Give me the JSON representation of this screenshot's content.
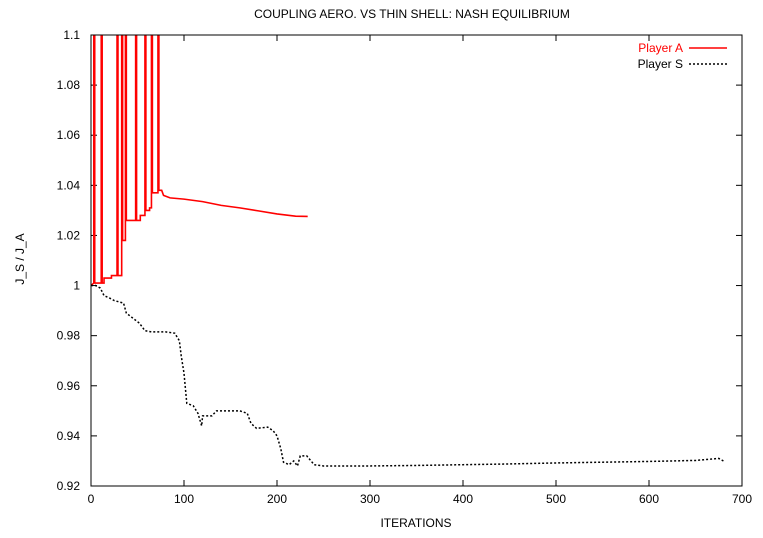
{
  "chart_data": {
    "type": "line",
    "title": "COUPLING AERO. VS THIN SHELL: NASH EQUILIBRIUM",
    "xlabel": "ITERATIONS",
    "ylabel": "J_S / J_A",
    "xlim": [
      0,
      700
    ],
    "ylim": [
      0.92,
      1.1
    ],
    "x_ticks": [
      "0",
      "100",
      "200",
      "300",
      "400",
      "500",
      "600",
      "700"
    ],
    "y_ticks": [
      "0.92",
      "0.94",
      "0.96",
      "0.98",
      "1",
      "1.02",
      "1.04",
      "1.06",
      "1.08",
      "1.1"
    ],
    "legend_position": "top-right",
    "grid": false,
    "series": [
      {
        "name": "Player A",
        "color": "#ff0000",
        "style": "solid",
        "points": [
          [
            0,
            1.0
          ],
          [
            3,
            1.001
          ],
          [
            3,
            1.1
          ],
          [
            4,
            1.1
          ],
          [
            4,
            1.001
          ],
          [
            11,
            1.001
          ],
          [
            11,
            1.1
          ],
          [
            12,
            1.1
          ],
          [
            12,
            1.001
          ],
          [
            14,
            1.001
          ],
          [
            14,
            1.003
          ],
          [
            22,
            1.003
          ],
          [
            22,
            1.004
          ],
          [
            28,
            1.004
          ],
          [
            28,
            1.1
          ],
          [
            29,
            1.1
          ],
          [
            29,
            1.004
          ],
          [
            33,
            1.004
          ],
          [
            33,
            1.1
          ],
          [
            34,
            1.1
          ],
          [
            34,
            1.018
          ],
          [
            37,
            1.018
          ],
          [
            37,
            1.1
          ],
          [
            38,
            1.1
          ],
          [
            38,
            1.026
          ],
          [
            48,
            1.026
          ],
          [
            48,
            1.1
          ],
          [
            49,
            1.1
          ],
          [
            49,
            1.026
          ],
          [
            53,
            1.026
          ],
          [
            53,
            1.028
          ],
          [
            58,
            1.028
          ],
          [
            58,
            1.1
          ],
          [
            59,
            1.1
          ],
          [
            59,
            1.03
          ],
          [
            63,
            1.03
          ],
          [
            63,
            1.031
          ],
          [
            65,
            1.031
          ],
          [
            65,
            1.1
          ],
          [
            66,
            1.1
          ],
          [
            66,
            1.037
          ],
          [
            72,
            1.037
          ],
          [
            72,
            1.1
          ],
          [
            73,
            1.1
          ],
          [
            73,
            1.038
          ],
          [
            76,
            1.038
          ],
          [
            78,
            1.036
          ],
          [
            85,
            1.035
          ],
          [
            100,
            1.0345
          ],
          [
            120,
            1.0335
          ],
          [
            140,
            1.032
          ],
          [
            160,
            1.031
          ],
          [
            180,
            1.0298
          ],
          [
            200,
            1.0286
          ],
          [
            220,
            1.0277
          ],
          [
            233,
            1.0276
          ]
        ]
      },
      {
        "name": "Player S",
        "color": "#000000",
        "style": "dotted",
        "points": [
          [
            0,
            1.0
          ],
          [
            5,
            1.0
          ],
          [
            10,
            0.999
          ],
          [
            14,
            0.996
          ],
          [
            20,
            0.995
          ],
          [
            25,
            0.994
          ],
          [
            35,
            0.993
          ],
          [
            38,
            0.989
          ],
          [
            45,
            0.987
          ],
          [
            52,
            0.985
          ],
          [
            58,
            0.982
          ],
          [
            65,
            0.9815
          ],
          [
            80,
            0.9815
          ],
          [
            90,
            0.981
          ],
          [
            95,
            0.978
          ],
          [
            97,
            0.972
          ],
          [
            100,
            0.965
          ],
          [
            103,
            0.953
          ],
          [
            110,
            0.952
          ],
          [
            115,
            0.949
          ],
          [
            119,
            0.944
          ],
          [
            120,
            0.948
          ],
          [
            130,
            0.948
          ],
          [
            135,
            0.95
          ],
          [
            145,
            0.95
          ],
          [
            160,
            0.95
          ],
          [
            168,
            0.949
          ],
          [
            172,
            0.945
          ],
          [
            178,
            0.943
          ],
          [
            190,
            0.9435
          ],
          [
            196,
            0.942
          ],
          [
            200,
            0.94
          ],
          [
            204,
            0.935
          ],
          [
            207,
            0.9295
          ],
          [
            213,
            0.9285
          ],
          [
            218,
            0.93
          ],
          [
            222,
            0.928
          ],
          [
            225,
            0.932
          ],
          [
            232,
            0.932
          ],
          [
            240,
            0.9285
          ],
          [
            250,
            0.928
          ],
          [
            270,
            0.928
          ],
          [
            300,
            0.928
          ],
          [
            350,
            0.9282
          ],
          [
            400,
            0.9285
          ],
          [
            450,
            0.9288
          ],
          [
            500,
            0.9292
          ],
          [
            550,
            0.9295
          ],
          [
            600,
            0.9298
          ],
          [
            650,
            0.9302
          ],
          [
            675,
            0.931
          ],
          [
            680,
            0.93
          ]
        ]
      }
    ]
  }
}
